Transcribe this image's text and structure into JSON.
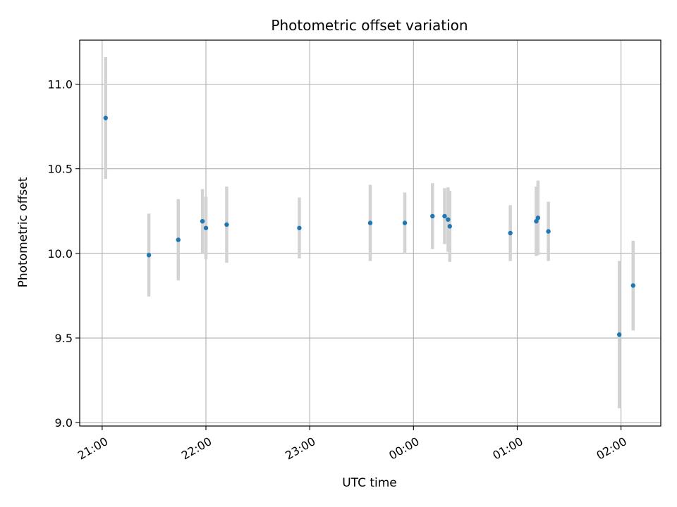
{
  "chart_data": {
    "type": "scatter",
    "title": "Photometric offset variation",
    "xlabel": "UTC time",
    "ylabel": "Photometric offset",
    "x_axis": "time",
    "xlim": [
      "20:47",
      "02:23"
    ],
    "ylim": [
      8.98,
      11.26
    ],
    "x_ticks": [
      "21:00",
      "22:00",
      "23:00",
      "00:00",
      "01:00",
      "02:00"
    ],
    "y_ticks": [
      9.0,
      9.5,
      10.0,
      10.5,
      11.0
    ],
    "y_tick_labels": [
      "9.0",
      "9.5",
      "10.0",
      "10.5",
      "11.0"
    ],
    "grid": true,
    "colors": {
      "point": "#1f77b4",
      "errorbar": "#d3d3d3",
      "grid": "#b0b0b0"
    },
    "points": [
      {
        "x": "21:02",
        "y": 10.8,
        "err": 0.36
      },
      {
        "x": "21:27",
        "y": 9.99,
        "err": 0.245
      },
      {
        "x": "21:44",
        "y": 10.08,
        "err": 0.24
      },
      {
        "x": "21:58",
        "y": 10.19,
        "err": 0.19
      },
      {
        "x": "22:00",
        "y": 10.15,
        "err": 0.185
      },
      {
        "x": "22:12",
        "y": 10.17,
        "err": 0.225
      },
      {
        "x": "22:54",
        "y": 10.15,
        "err": 0.18
      },
      {
        "x": "23:35",
        "y": 10.18,
        "err": 0.225
      },
      {
        "x": "23:55",
        "y": 10.18,
        "err": 0.18
      },
      {
        "x": "00:11",
        "y": 10.22,
        "err": 0.195
      },
      {
        "x": "00:18",
        "y": 10.22,
        "err": 0.165
      },
      {
        "x": "00:20",
        "y": 10.2,
        "err": 0.19
      },
      {
        "x": "00:21",
        "y": 10.16,
        "err": 0.21
      },
      {
        "x": "00:56",
        "y": 10.12,
        "err": 0.165
      },
      {
        "x": "01:11",
        "y": 10.19,
        "err": 0.205
      },
      {
        "x": "01:12",
        "y": 10.21,
        "err": 0.22
      },
      {
        "x": "01:18",
        "y": 10.13,
        "err": 0.175
      },
      {
        "x": "01:59",
        "y": 9.52,
        "err": 0.435
      },
      {
        "x": "02:07",
        "y": 9.81,
        "err": 0.265
      }
    ]
  }
}
